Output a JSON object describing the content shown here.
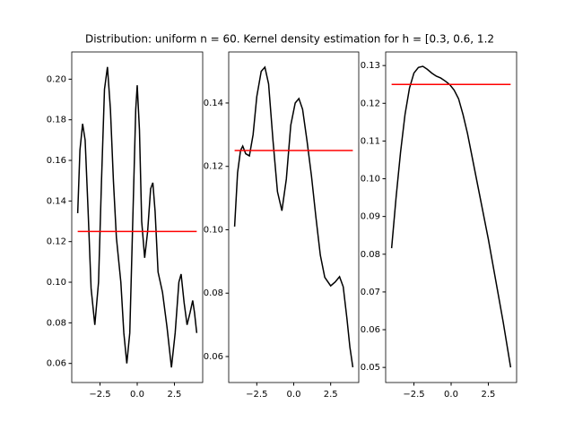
{
  "title": "Distribution: uniform n = 60. Kernel density estimation for h = [0.3, 0.6, 1.2",
  "chart_data": [
    {
      "type": "line",
      "xlim": [
        -4.4,
        4.4
      ],
      "xticks": [
        {
          "value": -2.5,
          "label": "−2.5"
        },
        {
          "value": 0,
          "label": "0.0"
        },
        2.5
      ],
      "ylim": [
        0.0506,
        0.2134
      ],
      "yticks": [
        0.06,
        0.08,
        {
          "value": 0.1,
          "label": "0.10"
        },
        0.12,
        0.14,
        0.16,
        0.18,
        {
          "value": 0.2,
          "label": "0.20"
        }
      ],
      "series": [
        {
          "color": "#000000",
          "x": [
            -4.0,
            -3.85,
            -3.67,
            -3.5,
            -3.3,
            -3.1,
            -2.85,
            -2.6,
            -2.4,
            -2.2,
            -2.0,
            -1.8,
            -1.6,
            -1.4,
            -1.1,
            -0.9,
            -0.7,
            -0.5,
            -0.3,
            -0.1,
            0.0,
            0.15,
            0.3,
            0.5,
            0.7,
            0.9,
            1.05,
            1.2,
            1.4,
            1.7,
            2.0,
            2.3,
            2.55,
            2.8,
            2.95,
            3.15,
            3.35,
            3.55,
            3.73,
            3.85,
            4.0
          ],
          "values": [
            0.134,
            0.165,
            0.178,
            0.17,
            0.135,
            0.097,
            0.079,
            0.1,
            0.15,
            0.195,
            0.206,
            0.185,
            0.15,
            0.122,
            0.1,
            0.075,
            0.06,
            0.075,
            0.13,
            0.185,
            0.197,
            0.175,
            0.13,
            0.112,
            0.125,
            0.146,
            0.149,
            0.135,
            0.105,
            0.095,
            0.078,
            0.058,
            0.075,
            0.1,
            0.104,
            0.09,
            0.079,
            0.085,
            0.091,
            0.085,
            0.075
          ]
        },
        {
          "color": "#ff0000",
          "x": [
            -4.0,
            4.0
          ],
          "values": [
            0.125,
            0.125
          ]
        }
      ]
    },
    {
      "type": "line",
      "xlim": [
        -4.4,
        4.4
      ],
      "xticks": [
        {
          "value": -2.5,
          "label": "−2.5"
        },
        {
          "value": 0,
          "label": "0.0"
        },
        2.5
      ],
      "ylim": [
        0.0518,
        0.1561
      ],
      "yticks": [
        0.06,
        0.08,
        {
          "value": 0.1,
          "label": "0.10"
        },
        0.12,
        0.14
      ],
      "series": [
        {
          "color": "#000000",
          "x": [
            -4.0,
            -3.8,
            -3.6,
            -3.45,
            -3.25,
            -3.0,
            -2.75,
            -2.5,
            -2.2,
            -1.95,
            -1.7,
            -1.4,
            -1.1,
            -0.8,
            -0.5,
            -0.2,
            0.1,
            0.35,
            0.6,
            0.9,
            1.2,
            1.5,
            1.8,
            2.1,
            2.5,
            2.8,
            3.1,
            3.35,
            3.6,
            3.8,
            4.0
          ],
          "values": [
            0.101,
            0.118,
            0.125,
            0.1264,
            0.124,
            0.1233,
            0.13,
            0.142,
            0.15,
            0.1513,
            0.146,
            0.128,
            0.112,
            0.106,
            0.116,
            0.133,
            0.14,
            0.1414,
            0.138,
            0.128,
            0.117,
            0.104,
            0.092,
            0.085,
            0.0823,
            0.0835,
            0.0852,
            0.082,
            0.072,
            0.063,
            0.0566
          ]
        },
        {
          "color": "#ff0000",
          "x": [
            -4.0,
            4.0
          ],
          "values": [
            0.125,
            0.125
          ]
        }
      ]
    },
    {
      "type": "line",
      "xlim": [
        -4.4,
        4.4
      ],
      "xticks": [
        {
          "value": -2.5,
          "label": "−2.5"
        },
        {
          "value": 0,
          "label": "0.0"
        },
        2.5
      ],
      "ylim": [
        0.046,
        0.1336
      ],
      "yticks": [
        0.05,
        0.06,
        0.07,
        0.08,
        0.09,
        {
          "value": 0.1,
          "label": "0.10"
        },
        0.11,
        0.12,
        0.13
      ],
      "series": [
        {
          "color": "#000000",
          "x": [
            -4.0,
            -3.7,
            -3.4,
            -3.1,
            -2.8,
            -2.5,
            -2.2,
            -1.9,
            -1.6,
            -1.3,
            -1.0,
            -0.7,
            -0.4,
            -0.1,
            0.2,
            0.5,
            0.8,
            1.1,
            1.5,
            2.0,
            2.5,
            3.0,
            3.5,
            4.0
          ],
          "values": [
            0.0816,
            0.095,
            0.107,
            0.117,
            0.124,
            0.128,
            0.1295,
            0.1298,
            0.129,
            0.128,
            0.1272,
            0.1267,
            0.1259,
            0.125,
            0.1235,
            0.1212,
            0.117,
            0.112,
            0.104,
            0.094,
            0.084,
            0.073,
            0.062,
            0.05
          ]
        },
        {
          "color": "#ff0000",
          "x": [
            -4.0,
            4.0
          ],
          "values": [
            0.125,
            0.125
          ]
        }
      ]
    }
  ]
}
